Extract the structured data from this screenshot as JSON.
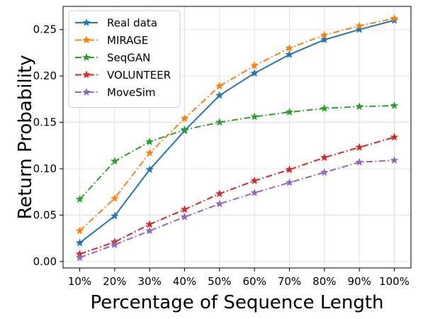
{
  "chart_data": {
    "type": "line",
    "xlabel": "Percentage of Sequence Length",
    "ylabel": "Return Probability",
    "categories": [
      "10%",
      "20%",
      "30%",
      "40%",
      "50%",
      "60%",
      "70%",
      "80%",
      "90%",
      "100%"
    ],
    "yticks": [
      "0.00",
      "0.05",
      "0.10",
      "0.15",
      "0.20",
      "0.25"
    ],
    "ylim": [
      -0.007,
      0.275
    ],
    "grid": true,
    "legend_position": "top-left",
    "series": [
      {
        "name": "Real data",
        "color": "#1f77b4",
        "linestyle": "solid",
        "values": [
          0.02,
          0.049,
          0.099,
          0.141,
          0.179,
          0.203,
          0.223,
          0.239,
          0.25,
          0.26
        ]
      },
      {
        "name": "MIRAGE",
        "color": "#ff7f0e",
        "linestyle": "dashdot",
        "values": [
          0.033,
          0.068,
          0.117,
          0.154,
          0.189,
          0.211,
          0.23,
          0.244,
          0.254,
          0.262
        ]
      },
      {
        "name": "SeqGAN",
        "color": "#2ca02c",
        "linestyle": "dashdot",
        "values": [
          0.067,
          0.108,
          0.129,
          0.142,
          0.15,
          0.156,
          0.161,
          0.165,
          0.167,
          0.168
        ]
      },
      {
        "name": "VOLUNTEER",
        "color": "#d62728",
        "linestyle": "dashdot",
        "values": [
          0.008,
          0.021,
          0.04,
          0.056,
          0.073,
          0.087,
          0.099,
          0.112,
          0.123,
          0.134
        ]
      },
      {
        "name": "MoveSim",
        "color": "#9467bd",
        "linestyle": "dashdot",
        "values": [
          0.004,
          0.018,
          0.033,
          0.048,
          0.062,
          0.074,
          0.085,
          0.096,
          0.107,
          0.109
        ]
      }
    ]
  }
}
